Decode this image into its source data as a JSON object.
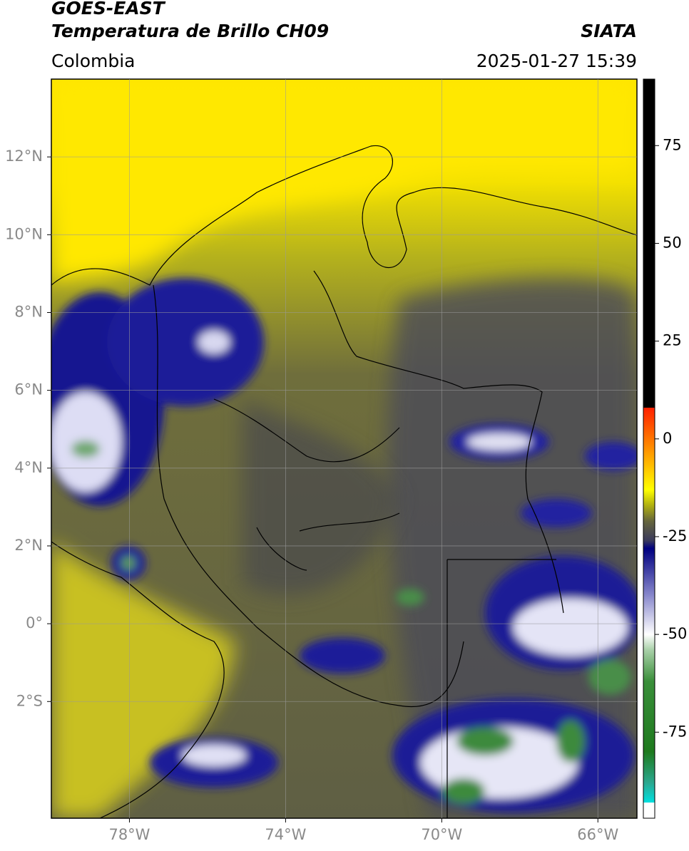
{
  "header": {
    "title": "GOES-EAST",
    "subtitle": "Temperatura de Brillo CH09",
    "source": "SIATA",
    "region": "Colombia",
    "datetime": "2025-01-27 15:39"
  },
  "map": {
    "xlim": [
      -80,
      -65
    ],
    "ylim": [
      -5,
      14
    ],
    "xticks": [
      {
        "value": -78,
        "label": "78°W"
      },
      {
        "value": -74,
        "label": "74°W"
      },
      {
        "value": -70,
        "label": "70°W"
      },
      {
        "value": -66,
        "label": "66°W"
      }
    ],
    "yticks": [
      {
        "value": 12,
        "label": "12°N"
      },
      {
        "value": 10,
        "label": "10°N"
      },
      {
        "value": 8,
        "label": "8°N"
      },
      {
        "value": 6,
        "label": "6°N"
      },
      {
        "value": 4,
        "label": "4°N"
      },
      {
        "value": 2,
        "label": "2°N"
      },
      {
        "value": 0,
        "label": "0°"
      },
      {
        "value": -2,
        "label": "2°S"
      }
    ],
    "grid": true
  },
  "colorbar": {
    "lim": [
      -97,
      92
    ],
    "ticks": [
      75,
      50,
      25,
      0,
      -25,
      -50,
      -75
    ],
    "colormap": [
      [
        -97,
        "#ffffff"
      ],
      [
        -93,
        "#ffffff"
      ],
      [
        -93,
        "#00e0e0"
      ],
      [
        -88,
        "#2aa890"
      ],
      [
        -80,
        "#1e7a1e"
      ],
      [
        -62,
        "#3a8f3a"
      ],
      [
        -54,
        "#a8d0a8"
      ],
      [
        -50,
        "#ffffff"
      ],
      [
        -40,
        "#8888cc"
      ],
      [
        -28,
        "#000080"
      ],
      [
        -26,
        "#3a3a5c"
      ],
      [
        -21,
        "#66663c"
      ],
      [
        -17,
        "#b0b010"
      ],
      [
        -13,
        "#ffff00"
      ],
      [
        -4,
        "#ffa000"
      ],
      [
        8,
        "#ff2000"
      ],
      [
        8,
        "#000000"
      ],
      [
        92,
        "#000000"
      ]
    ]
  }
}
